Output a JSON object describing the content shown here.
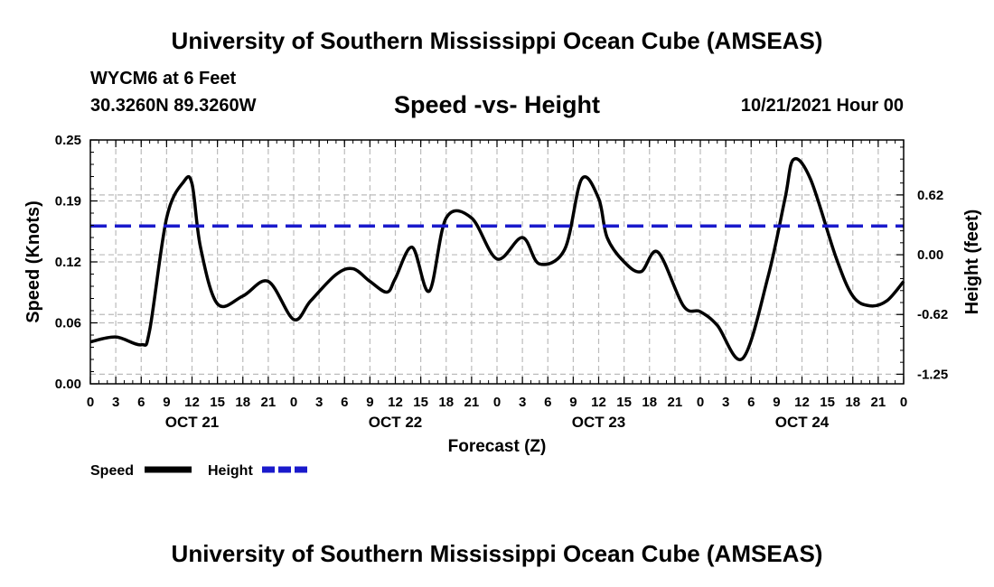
{
  "header": {
    "title": "University of Southern Mississippi Ocean Cube (AMSEAS)",
    "station": "WYCM6 at 6 Feet",
    "coords": "30.3260N  89.3260W",
    "chart_title": "Speed -vs- Height",
    "datetime": "10/21/2021 Hour 00"
  },
  "footer": {
    "title": "University of Southern Mississippi Ocean Cube (AMSEAS)"
  },
  "colors": {
    "speed": "#000000",
    "height": "#1a1acc",
    "grid": "#bbbbbb"
  },
  "chart_data": {
    "type": "line",
    "title": "Speed -vs- Height",
    "xlabel": "Forecast (Z)",
    "ylabel": "Speed (Knots)",
    "y2label": "Height (feet)",
    "xlim": [
      0,
      96
    ],
    "ylim": [
      0,
      0.25
    ],
    "y2lim": [
      -1.35,
      1.2
    ],
    "x_tick_labels": [
      "0",
      "3",
      "6",
      "9",
      "12",
      "15",
      "18",
      "21",
      "0",
      "3",
      "6",
      "9",
      "12",
      "15",
      "18",
      "21",
      "0",
      "3",
      "6",
      "9",
      "12",
      "15",
      "18",
      "21",
      "0",
      "3",
      "6",
      "9",
      "12",
      "15",
      "18",
      "21",
      "0"
    ],
    "date_labels": [
      {
        "label": "OCT 21",
        "hour": 12
      },
      {
        "label": "OCT 22",
        "hour": 36
      },
      {
        "label": "OCT 23",
        "hour": 60
      },
      {
        "label": "OCT 24",
        "hour": 84
      }
    ],
    "y_ticks": [
      "0.00",
      "0.06",
      "0.12",
      "0.19",
      "0.25"
    ],
    "y_tick_values": [
      0,
      0.0625,
      0.125,
      0.1875,
      0.25
    ],
    "y2_ticks": [
      "0.62",
      "0.00",
      "-0.62",
      "-1.25"
    ],
    "y2_tick_values": [
      0.625,
      0,
      -0.625,
      -1.25
    ],
    "legend": [
      "Speed",
      "Height"
    ],
    "series": [
      {
        "name": "Speed",
        "axis": "left",
        "style": "solid",
        "x": [
          0,
          3,
          6,
          7,
          9,
          11,
          12,
          13,
          15,
          18,
          21,
          24,
          26,
          29,
          31,
          33,
          35,
          36,
          38,
          40,
          42,
          45,
          48,
          51,
          53,
          56,
          58,
          60,
          61,
          63,
          65,
          67,
          70,
          72,
          74,
          77,
          80,
          82,
          83,
          85,
          88,
          90,
          92,
          94,
          96
        ],
        "values": [
          0.043,
          0.048,
          0.04,
          0.055,
          0.17,
          0.207,
          0.205,
          0.14,
          0.082,
          0.09,
          0.105,
          0.066,
          0.085,
          0.112,
          0.118,
          0.105,
          0.094,
          0.108,
          0.14,
          0.095,
          0.17,
          0.17,
          0.128,
          0.15,
          0.123,
          0.138,
          0.21,
          0.19,
          0.15,
          0.125,
          0.115,
          0.135,
          0.08,
          0.074,
          0.06,
          0.026,
          0.11,
          0.19,
          0.23,
          0.21,
          0.13,
          0.09,
          0.08,
          0.085,
          0.105
        ]
      },
      {
        "name": "Height",
        "axis": "right",
        "style": "dashed",
        "x": [
          0,
          2,
          4,
          6,
          8,
          10,
          12,
          14,
          16,
          18,
          20,
          22,
          24,
          26,
          28,
          30,
          32,
          34,
          36,
          38,
          40,
          42,
          44,
          46,
          48,
          50,
          52,
          54,
          56,
          58,
          60,
          62,
          64,
          66,
          68,
          70,
          72,
          74,
          76,
          78,
          80,
          82,
          84,
          86,
          88,
          90,
          92,
          94,
          96
        ],
        "values": [
          0.3,
          0.3,
          0.3,
          0.3,
          0.3,
          0.3,
          0.3,
          0.3,
          0.3,
          0.3,
          0.3,
          0.3,
          0.3,
          0.3,
          0.3,
          0.3,
          0.3,
          0.3,
          0.3,
          0.3,
          0.3,
          0.3,
          0.3,
          0.3,
          0.3,
          0.3,
          0.3,
          0.3,
          0.3,
          0.3,
          0.3,
          0.3,
          0.3,
          0.3,
          0.3,
          0.3,
          0.3,
          0.3,
          0.3,
          0.3,
          0.3,
          0.3,
          0.3,
          0.3,
          0.3,
          0.3,
          0.3,
          0.3,
          0.3
        ]
      }
    ]
  }
}
